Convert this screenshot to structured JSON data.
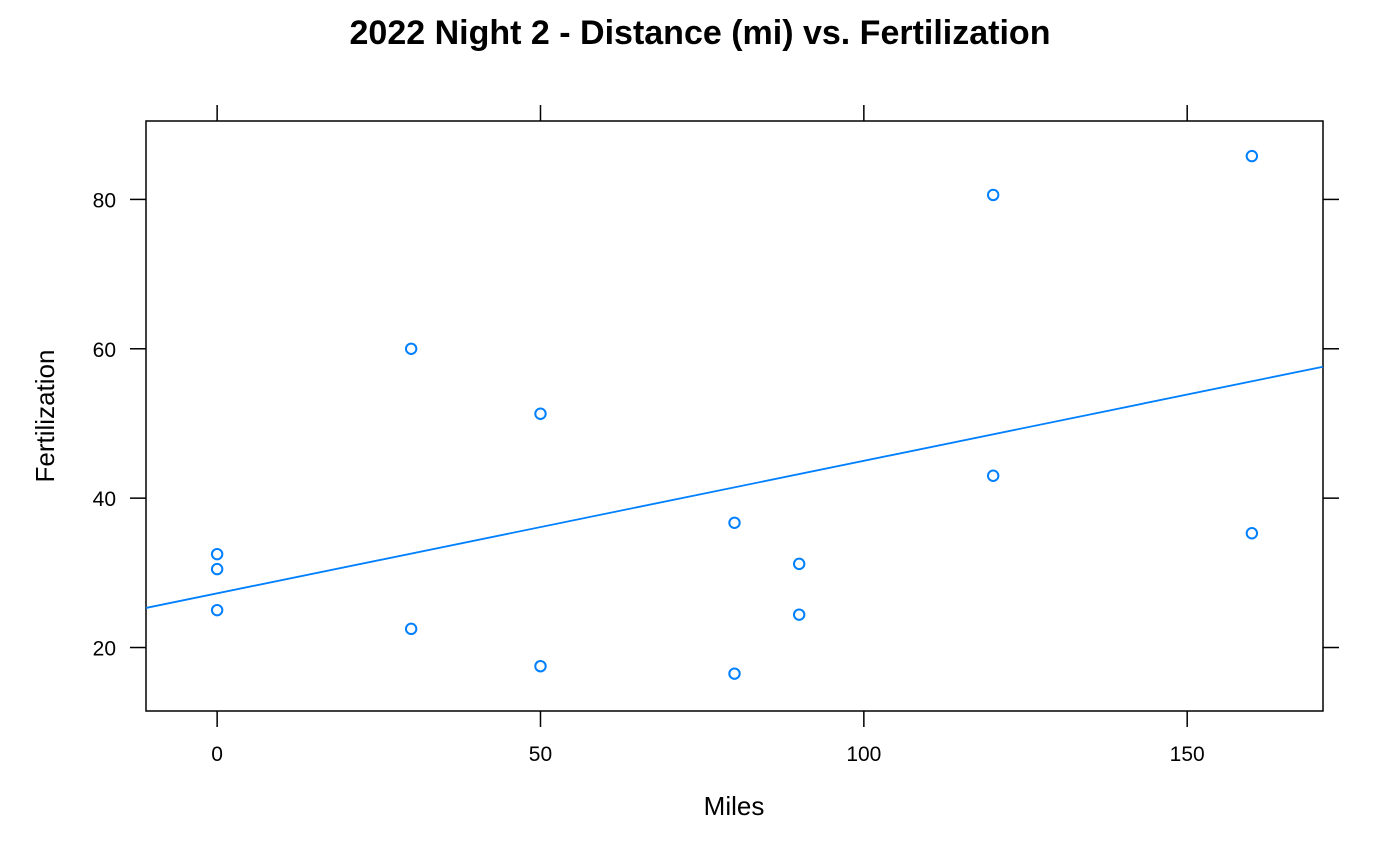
{
  "chart_data": {
    "type": "scatter",
    "title": "2022 Night 2 - Distance (mi) vs. Fertilization",
    "xlabel": "Miles",
    "ylabel": "Fertilization",
    "xlim": [
      -11,
      171
    ],
    "ylim": [
      11.5,
      90.5
    ],
    "xticks": [
      0,
      50,
      100,
      150
    ],
    "yticks": [
      20,
      40,
      60,
      80
    ],
    "grid": false,
    "legend": "none",
    "point_color": "#0080ff",
    "line_color": "#0080ff",
    "series": [
      {
        "points": [
          {
            "x": 0,
            "y": 32.5
          },
          {
            "x": 0,
            "y": 30.5
          },
          {
            "x": 0,
            "y": 25.0
          },
          {
            "x": 30,
            "y": 60.0
          },
          {
            "x": 30,
            "y": 22.5
          },
          {
            "x": 50,
            "y": 51.3
          },
          {
            "x": 50,
            "y": 17.5
          },
          {
            "x": 80,
            "y": 36.7
          },
          {
            "x": 80,
            "y": 16.5
          },
          {
            "x": 90,
            "y": 31.2
          },
          {
            "x": 90,
            "y": 24.4
          },
          {
            "x": 120,
            "y": 80.6
          },
          {
            "x": 120,
            "y": 43.0
          },
          {
            "x": 160,
            "y": 85.8
          },
          {
            "x": 160,
            "y": 35.3
          }
        ]
      }
    ],
    "regression_line": {
      "x": [
        -11,
        171
      ],
      "y": [
        25.3,
        57.6
      ]
    }
  }
}
